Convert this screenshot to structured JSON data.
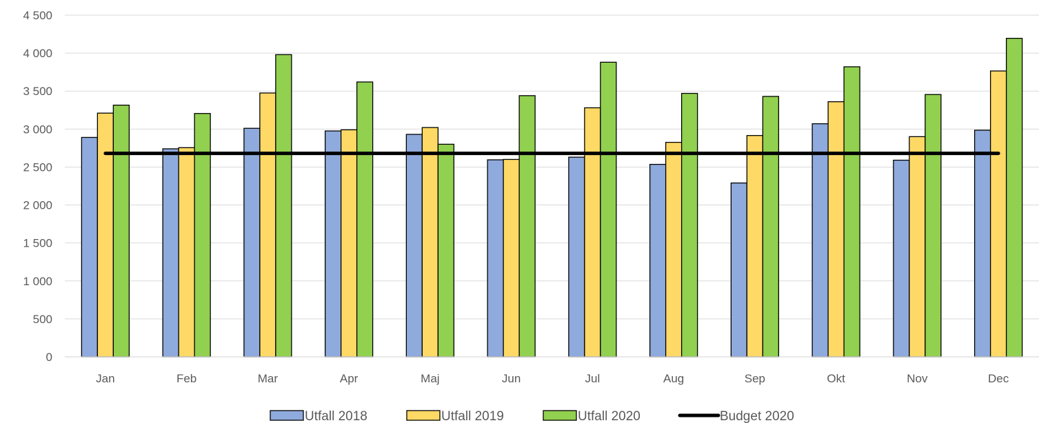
{
  "chart_data": {
    "type": "bar",
    "categories": [
      "Jan",
      "Feb",
      "Mar",
      "Apr",
      "Maj",
      "Jun",
      "Jul",
      "Aug",
      "Sep",
      "Okt",
      "Nov",
      "Dec"
    ],
    "series": [
      {
        "name": "Utfall 2018",
        "type": "bar",
        "color": "#8FAADC",
        "values": [
          2890,
          2740,
          3010,
          2975,
          2930,
          2595,
          2630,
          2535,
          2290,
          3070,
          2590,
          2985
        ]
      },
      {
        "name": "Utfall 2019",
        "type": "bar",
        "color": "#FFD966",
        "values": [
          3210,
          2755,
          3475,
          2990,
          3020,
          2600,
          3280,
          2825,
          2915,
          3360,
          2900,
          3765
        ]
      },
      {
        "name": "Utfall 2020",
        "type": "bar",
        "color": "#92D050",
        "values": [
          3315,
          3205,
          3980,
          3620,
          2800,
          3440,
          3880,
          3470,
          3430,
          3820,
          3455,
          4195
        ]
      },
      {
        "name": "Budget 2020",
        "type": "line",
        "color": "#000000",
        "values": [
          2680,
          2680,
          2680,
          2680,
          2680,
          2680,
          2680,
          2680,
          2680,
          2680,
          2680,
          2680
        ]
      }
    ],
    "yticks": [
      "0",
      "500",
      "1 000",
      "1 500",
      "2 000",
      "2 500",
      "3 000",
      "3 500",
      "4 000",
      "4 500"
    ],
    "ylim": [
      0,
      4500
    ],
    "grid": true,
    "legend_position": "bottom"
  }
}
